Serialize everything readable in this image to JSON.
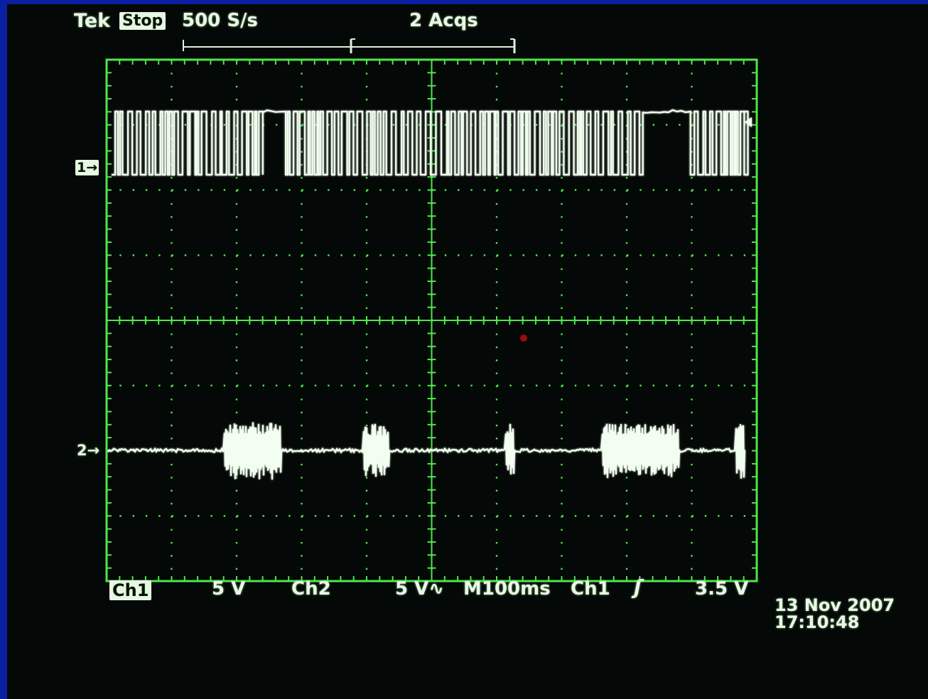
{
  "header": {
    "brand": "Tek",
    "status": "Stop",
    "sample_rate": "500 S/s",
    "acquisitions": "2 Acqs"
  },
  "channels": {
    "ch1_marker": "1",
    "ch2_marker": "2"
  },
  "footer": {
    "ch1_label": "Ch1",
    "ch1_scale": "5 V",
    "ch2_label": "Ch2",
    "ch2_scale": "5 V",
    "ch2_coupling_symbol": "∿",
    "timebase": "M100ms",
    "trigger_source": "Ch1",
    "trigger_slope_symbol": "ʃ",
    "trigger_level": "3.5 V"
  },
  "datetime": {
    "date": "13 Nov 2007",
    "time": "17:10:48"
  },
  "colors": {
    "grid": "#4ee64a",
    "trace": "#f2fff0",
    "background": "#040806",
    "bezel": "#0b1fa3",
    "text": "#e9f8e6"
  }
}
